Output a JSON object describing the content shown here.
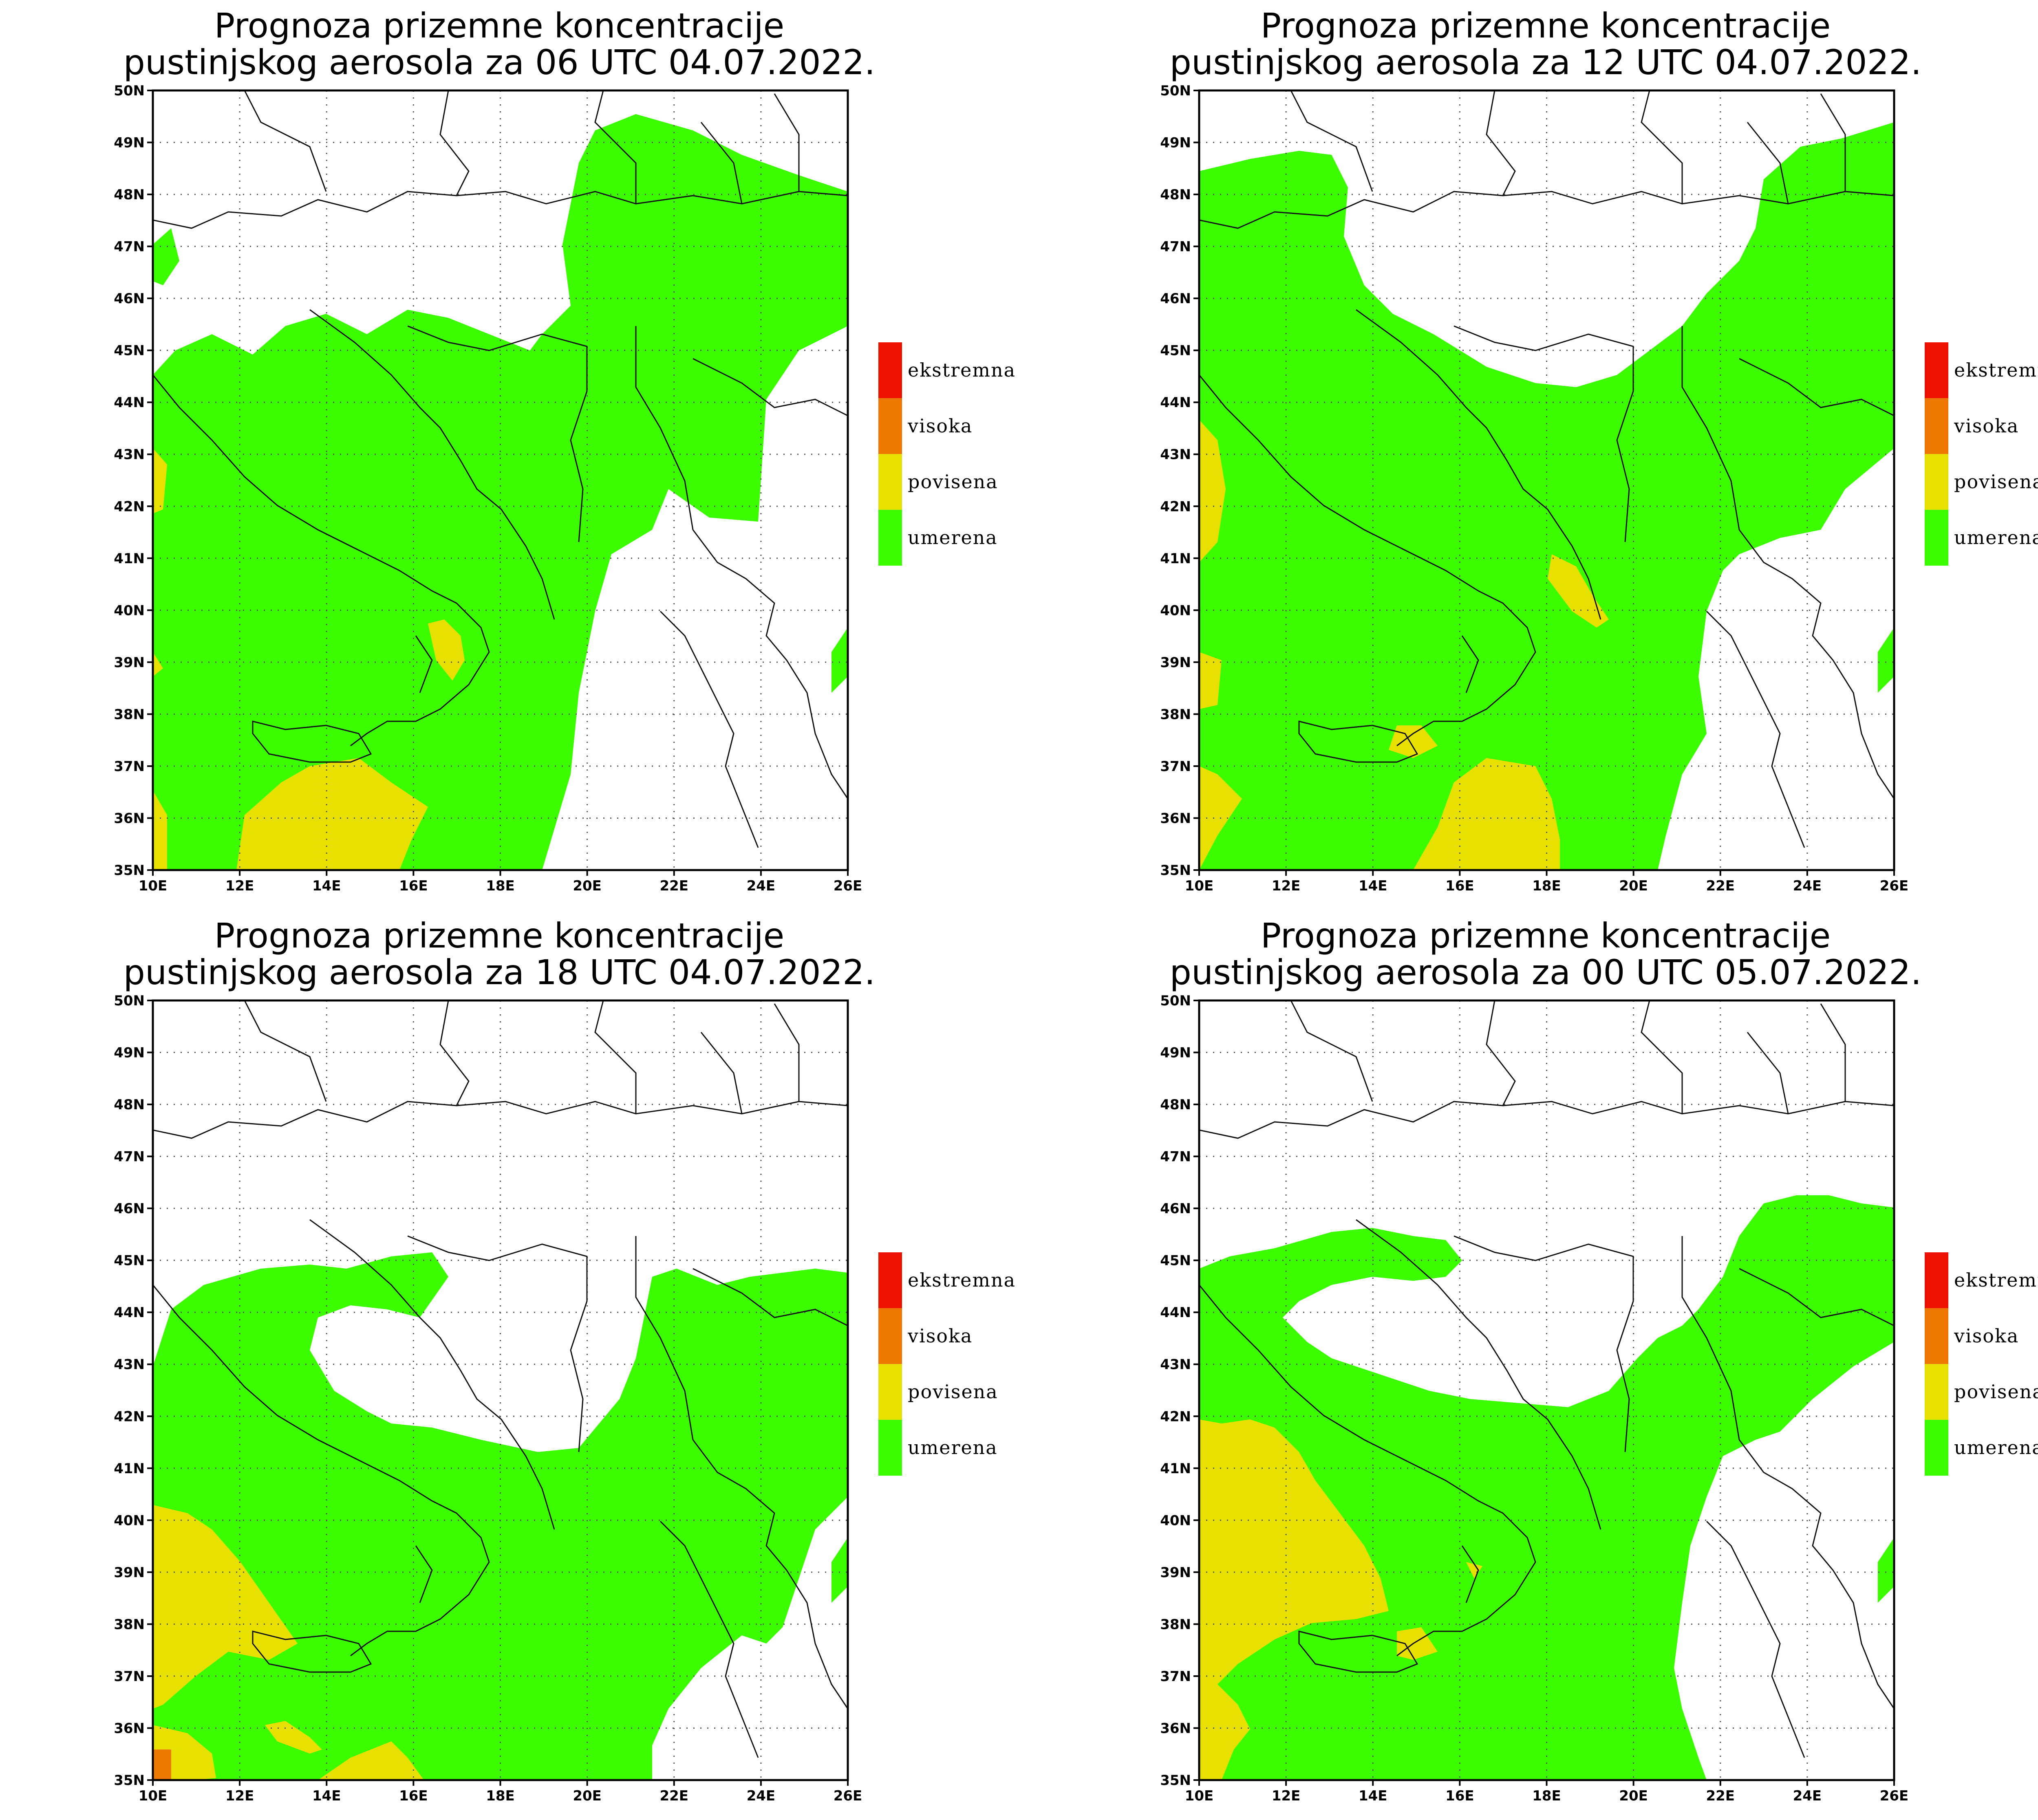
{
  "legend": {
    "items": [
      {
        "label": "ekstremna",
        "color": "#ee1100"
      },
      {
        "label": "visoka",
        "color": "#ee7700"
      },
      {
        "label": "povisena",
        "color": "#e8e000"
      },
      {
        "label": "umerena",
        "color": "#3cfc00"
      }
    ]
  },
  "axes": {
    "lat_labels": [
      "35N",
      "36N",
      "37N",
      "38N",
      "39N",
      "40N",
      "41N",
      "42N",
      "43N",
      "44N",
      "45N",
      "46N",
      "47N",
      "48N",
      "49N",
      "50N"
    ],
    "lon_labels": [
      "10E",
      "12E",
      "14E",
      "16E",
      "18E",
      "20E",
      "22E",
      "24E",
      "26E"
    ]
  },
  "colors": {
    "umerena": "#3cfc00",
    "povisena": "#e8e000",
    "visoka": "#ee7700",
    "ekstremna": "#ee1100"
  },
  "panels": [
    {
      "title_line1": "Prognoza prizemne koncentracije",
      "title_line2": "pustinjskog aerosola za 06 UTC 04.07.2022."
    },
    {
      "title_line1": "Prognoza prizemne koncentracije",
      "title_line2": "pustinjskog aerosola za 12 UTC 04.07.2022."
    },
    {
      "title_line1": "Prognoza prizemne koncentracije",
      "title_line2": "pustinjskog aerosola za 18 UTC 04.07.2022."
    },
    {
      "title_line1": "Prognoza prizemne koncentracije",
      "title_line2": "pustinjskog aerosola za 00 UTC 05.07.2022."
    }
  ]
}
